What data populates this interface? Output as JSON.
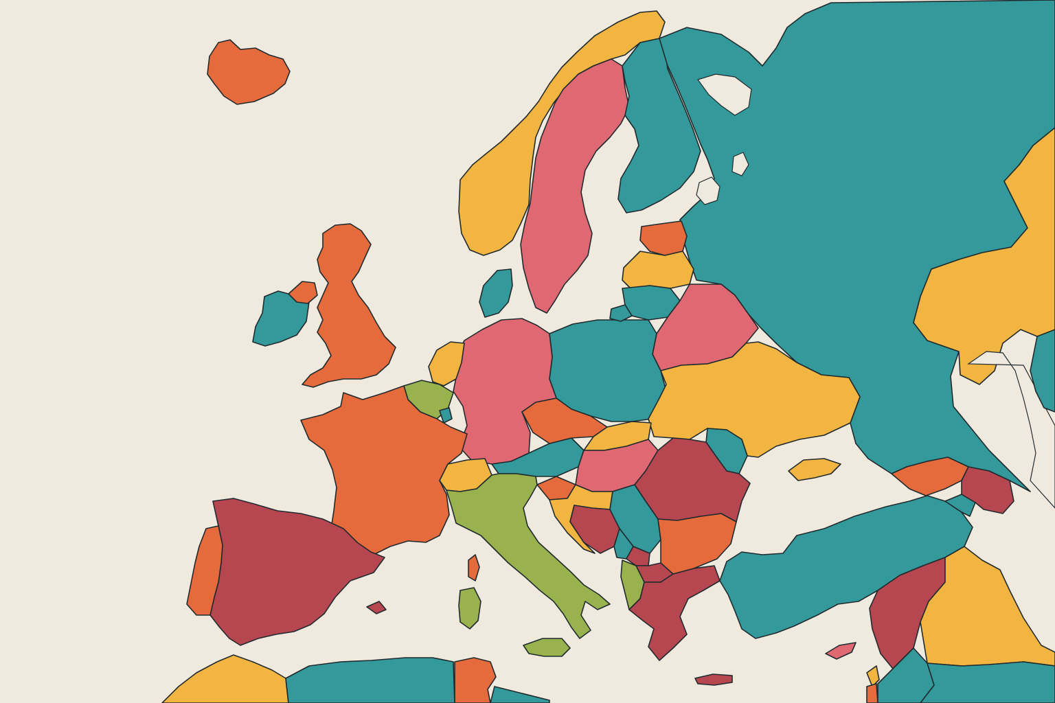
{
  "map": {
    "background": "#f0e9dd",
    "border_color": "#1f2a2e",
    "palette": {
      "orange": "#e56a3c",
      "teal": "#33999a",
      "yellow": "#f2b541",
      "pink": "#e06873",
      "crimson": "#b6464f",
      "green": "#99b24e"
    },
    "countries": [
      {
        "id": "iceland",
        "color": "orange"
      },
      {
        "id": "ireland",
        "color": "teal"
      },
      {
        "id": "northern-ireland",
        "color": "orange"
      },
      {
        "id": "united-kingdom",
        "color": "orange"
      },
      {
        "id": "norway",
        "color": "yellow"
      },
      {
        "id": "sweden",
        "color": "pink"
      },
      {
        "id": "finland",
        "color": "teal"
      },
      {
        "id": "russia",
        "color": "teal"
      },
      {
        "id": "kazakhstan",
        "color": "yellow"
      },
      {
        "id": "estonia",
        "color": "orange"
      },
      {
        "id": "latvia",
        "color": "yellow"
      },
      {
        "id": "lithuania",
        "color": "teal"
      },
      {
        "id": "kaliningrad",
        "color": "teal"
      },
      {
        "id": "belarus",
        "color": "pink"
      },
      {
        "id": "poland",
        "color": "teal"
      },
      {
        "id": "germany",
        "color": "pink"
      },
      {
        "id": "denmark",
        "color": "teal"
      },
      {
        "id": "netherlands",
        "color": "yellow"
      },
      {
        "id": "belgium",
        "color": "green"
      },
      {
        "id": "luxembourg",
        "color": "teal"
      },
      {
        "id": "france",
        "color": "orange"
      },
      {
        "id": "spain",
        "color": "crimson"
      },
      {
        "id": "portugal",
        "color": "orange"
      },
      {
        "id": "switzerland",
        "color": "yellow"
      },
      {
        "id": "italy",
        "color": "green"
      },
      {
        "id": "sicily",
        "color": "green"
      },
      {
        "id": "sardinia",
        "color": "green"
      },
      {
        "id": "corsica",
        "color": "orange"
      },
      {
        "id": "austria",
        "color": "teal"
      },
      {
        "id": "czechia",
        "color": "orange"
      },
      {
        "id": "slovakia",
        "color": "yellow"
      },
      {
        "id": "hungary",
        "color": "pink"
      },
      {
        "id": "slovenia",
        "color": "orange"
      },
      {
        "id": "croatia",
        "color": "yellow"
      },
      {
        "id": "bosnia",
        "color": "crimson"
      },
      {
        "id": "serbia",
        "color": "teal"
      },
      {
        "id": "montenegro",
        "color": "teal"
      },
      {
        "id": "kosovo",
        "color": "crimson"
      },
      {
        "id": "north-macedonia",
        "color": "crimson"
      },
      {
        "id": "albania",
        "color": "green"
      },
      {
        "id": "greece",
        "color": "crimson"
      },
      {
        "id": "crete",
        "color": "crimson"
      },
      {
        "id": "bulgaria",
        "color": "orange"
      },
      {
        "id": "romania",
        "color": "crimson"
      },
      {
        "id": "moldova",
        "color": "teal"
      },
      {
        "id": "ukraine",
        "color": "yellow"
      },
      {
        "id": "crimea",
        "color": "yellow"
      },
      {
        "id": "turkey",
        "color": "teal"
      },
      {
        "id": "cyprus",
        "color": "pink"
      },
      {
        "id": "georgia",
        "color": "orange"
      },
      {
        "id": "armenia",
        "color": "teal"
      },
      {
        "id": "azerbaijan",
        "color": "crimson"
      },
      {
        "id": "syria",
        "color": "crimson"
      },
      {
        "id": "iraq",
        "color": "yellow"
      },
      {
        "id": "lebanon",
        "color": "yellow"
      },
      {
        "id": "israel",
        "color": "orange"
      },
      {
        "id": "jordan",
        "color": "teal"
      },
      {
        "id": "morocco",
        "color": "yellow"
      },
      {
        "id": "algeria",
        "color": "teal"
      },
      {
        "id": "tunisia",
        "color": "orange"
      },
      {
        "id": "libya",
        "color": "teal"
      },
      {
        "id": "balearic-islands",
        "color": "crimson"
      },
      {
        "id": "caspian-region",
        "color": "teal"
      }
    ]
  }
}
